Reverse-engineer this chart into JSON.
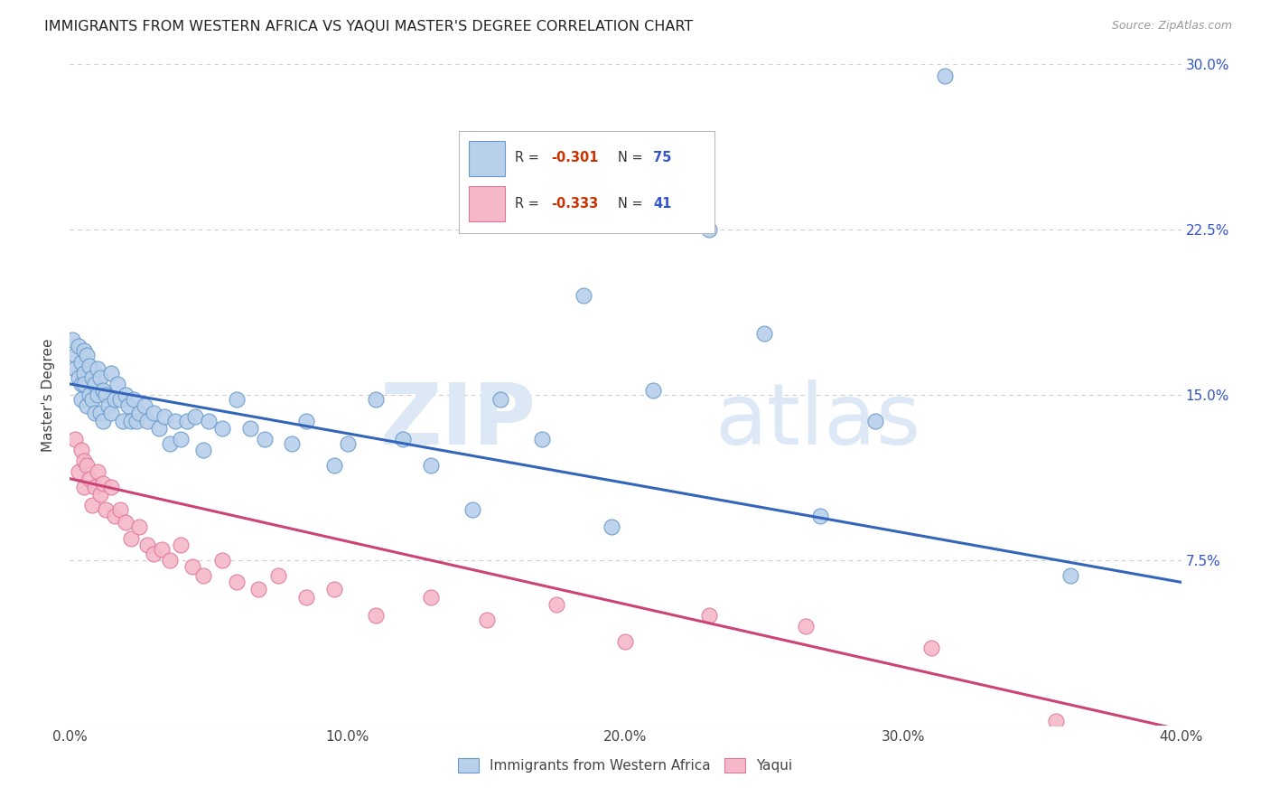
{
  "title": "IMMIGRANTS FROM WESTERN AFRICA VS YAQUI MASTER'S DEGREE CORRELATION CHART",
  "source": "Source: ZipAtlas.com",
  "ylabel": "Master's Degree",
  "xlim": [
    0.0,
    0.4
  ],
  "ylim": [
    0.0,
    0.3
  ],
  "xtick_vals": [
    0.0,
    0.1,
    0.2,
    0.3,
    0.4
  ],
  "xtick_labels": [
    "0.0%",
    "10.0%",
    "20.0%",
    "30.0%",
    "40.0%"
  ],
  "ytick_vals": [
    0.0,
    0.075,
    0.15,
    0.225,
    0.3
  ],
  "ytick_labels": [
    "",
    "7.5%",
    "15.0%",
    "22.5%",
    "30.0%"
  ],
  "blue_R": "-0.301",
  "blue_N": "75",
  "pink_R": "-0.333",
  "pink_N": "41",
  "blue_fill_color": "#b8d0ea",
  "blue_edge_color": "#6699cc",
  "blue_line_color": "#3366bb",
  "pink_fill_color": "#f5b8c8",
  "pink_edge_color": "#dd7799",
  "pink_line_color": "#cc4477",
  "blue_line_x0": 0.0,
  "blue_line_y0": 0.155,
  "blue_line_x1": 0.4,
  "blue_line_y1": 0.065,
  "pink_line_x0": 0.0,
  "pink_line_y0": 0.112,
  "pink_line_x1": 0.4,
  "pink_line_y1": -0.002,
  "blue_scatter_x": [
    0.001,
    0.002,
    0.002,
    0.003,
    0.003,
    0.004,
    0.004,
    0.004,
    0.005,
    0.005,
    0.005,
    0.006,
    0.006,
    0.007,
    0.007,
    0.008,
    0.008,
    0.009,
    0.009,
    0.01,
    0.01,
    0.011,
    0.011,
    0.012,
    0.012,
    0.013,
    0.014,
    0.015,
    0.015,
    0.016,
    0.017,
    0.018,
    0.019,
    0.02,
    0.021,
    0.022,
    0.023,
    0.024,
    0.025,
    0.027,
    0.028,
    0.03,
    0.032,
    0.034,
    0.036,
    0.038,
    0.04,
    0.042,
    0.045,
    0.048,
    0.05,
    0.055,
    0.06,
    0.065,
    0.07,
    0.08,
    0.085,
    0.095,
    0.1,
    0.11,
    0.12,
    0.13,
    0.145,
    0.155,
    0.17,
    0.185,
    0.195,
    0.21,
    0.23,
    0.25,
    0.27,
    0.29,
    0.315,
    0.36
  ],
  "blue_scatter_y": [
    0.175,
    0.168,
    0.162,
    0.172,
    0.158,
    0.165,
    0.155,
    0.148,
    0.16,
    0.17,
    0.155,
    0.168,
    0.145,
    0.163,
    0.15,
    0.158,
    0.148,
    0.155,
    0.142,
    0.162,
    0.15,
    0.158,
    0.142,
    0.152,
    0.138,
    0.15,
    0.145,
    0.16,
    0.142,
    0.148,
    0.155,
    0.148,
    0.138,
    0.15,
    0.145,
    0.138,
    0.148,
    0.138,
    0.142,
    0.145,
    0.138,
    0.142,
    0.135,
    0.14,
    0.128,
    0.138,
    0.13,
    0.138,
    0.14,
    0.125,
    0.138,
    0.135,
    0.148,
    0.135,
    0.13,
    0.128,
    0.138,
    0.118,
    0.128,
    0.148,
    0.13,
    0.118,
    0.098,
    0.148,
    0.13,
    0.195,
    0.09,
    0.152,
    0.225,
    0.178,
    0.095,
    0.138,
    0.295,
    0.068
  ],
  "pink_scatter_x": [
    0.002,
    0.003,
    0.004,
    0.005,
    0.005,
    0.006,
    0.007,
    0.008,
    0.009,
    0.01,
    0.011,
    0.012,
    0.013,
    0.015,
    0.016,
    0.018,
    0.02,
    0.022,
    0.025,
    0.028,
    0.03,
    0.033,
    0.036,
    0.04,
    0.044,
    0.048,
    0.055,
    0.06,
    0.068,
    0.075,
    0.085,
    0.095,
    0.11,
    0.13,
    0.15,
    0.175,
    0.2,
    0.23,
    0.265,
    0.31,
    0.355
  ],
  "pink_scatter_y": [
    0.13,
    0.115,
    0.125,
    0.12,
    0.108,
    0.118,
    0.112,
    0.1,
    0.108,
    0.115,
    0.105,
    0.11,
    0.098,
    0.108,
    0.095,
    0.098,
    0.092,
    0.085,
    0.09,
    0.082,
    0.078,
    0.08,
    0.075,
    0.082,
    0.072,
    0.068,
    0.075,
    0.065,
    0.062,
    0.068,
    0.058,
    0.062,
    0.05,
    0.058,
    0.048,
    0.055,
    0.038,
    0.05,
    0.045,
    0.035,
    0.002
  ],
  "watermark_zip": "ZIP",
  "watermark_atlas": "atlas",
  "watermark_color": "#dce8f5",
  "legend_blue_label": "Immigrants from Western Africa",
  "legend_pink_label": "Yaqui",
  "background_color": "#ffffff",
  "grid_color": "#cccccc",
  "r_color": "#cc3300",
  "n_color": "#3355cc",
  "legend_text_color": "#333333"
}
